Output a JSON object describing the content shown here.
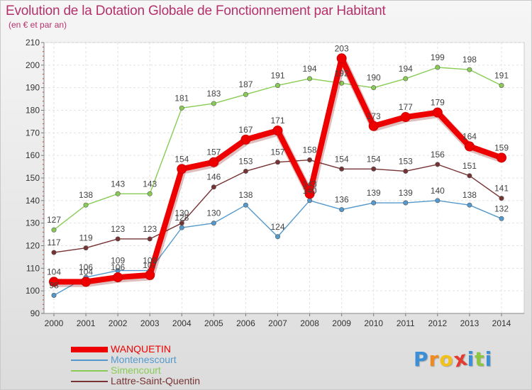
{
  "chart_data": {
    "type": "line",
    "title": "Evolution de la Dotation Globale de Fonctionnement par Habitant",
    "subtitle": "(en € et par an)",
    "xlabel": "",
    "ylabel": "",
    "x": [
      "2000",
      "2001",
      "2002",
      "2003",
      "2004",
      "2005",
      "2006",
      "2007",
      "2008",
      "2009",
      "2010",
      "2011",
      "2012",
      "2013",
      "2014"
    ],
    "ylim": [
      90,
      210
    ],
    "yticks": [
      "90",
      "100",
      "110",
      "120",
      "130",
      "140",
      "150",
      "160",
      "170",
      "180",
      "190",
      "200",
      "210"
    ],
    "grid": true,
    "legend_position": "bottom-left",
    "series": [
      {
        "name": "WANQUETIN",
        "color": "#ee0000",
        "values": [
          104,
          104,
          106,
          107,
          154,
          157,
          167,
          171,
          143,
          203,
          173,
          177,
          179,
          164,
          159
        ]
      },
      {
        "name": "Montenescourt",
        "color": "#5599cc",
        "values": [
          98,
          106,
          109,
          109,
          128,
          130,
          138,
          124,
          140,
          136,
          139,
          139,
          140,
          138,
          132
        ]
      },
      {
        "name": "Simencourt",
        "color": "#88cc55",
        "values": [
          127,
          138,
          143,
          143,
          181,
          183,
          187,
          191,
          194,
          192,
          190,
          194,
          199,
          198,
          191
        ]
      },
      {
        "name": "Lattre-Saint-Quentin",
        "color": "#773333",
        "values": [
          117,
          119,
          123,
          123,
          130,
          146,
          153,
          157,
          158,
          154,
          154,
          153,
          156,
          151,
          141
        ]
      }
    ]
  },
  "logo": {
    "letters": [
      "P",
      "r",
      "o",
      "x",
      "i",
      "t",
      "i"
    ],
    "colors": [
      "#3b8fd6",
      "#f08a1e",
      "#f2c21b",
      "#e33b2f",
      "#3b8fd6",
      "#8cc63f",
      "#3b8fd6"
    ]
  }
}
